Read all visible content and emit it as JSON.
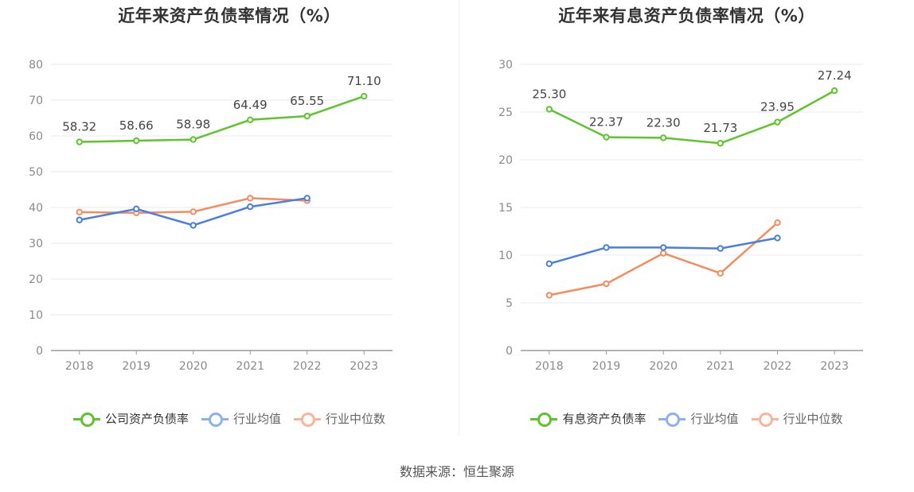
{
  "source_label": "数据来源：恒生聚源",
  "chart_data": [
    {
      "type": "line",
      "title": "近年来资产负债率情况（%）",
      "xlabel": "",
      "ylabel": "",
      "categories": [
        "2018",
        "2019",
        "2020",
        "2021",
        "2022",
        "2023"
      ],
      "ylim": [
        0,
        80
      ],
      "yticks": [
        0,
        10,
        20,
        30,
        40,
        50,
        60,
        70,
        80
      ],
      "grid": true,
      "legend_position": "bottom",
      "series": [
        {
          "name": "公司资产负债率",
          "color": "#5ec42c",
          "values": [
            58.32,
            58.66,
            58.98,
            64.49,
            65.55,
            71.1
          ],
          "labels": [
            "58.32",
            "58.66",
            "58.98",
            "64.49",
            "65.55",
            "71.10"
          ]
        },
        {
          "name": "行业均值",
          "color": "#4a7fe0",
          "values": [
            36.5,
            39.6,
            35.0,
            40.2,
            42.6,
            null
          ],
          "labels": []
        },
        {
          "name": "行业中位数",
          "color": "#f58c5f",
          "values": [
            38.7,
            38.5,
            38.8,
            42.6,
            41.9,
            null
          ],
          "labels": []
        }
      ]
    },
    {
      "type": "line",
      "title": "近年来有息资产负债率情况（%）",
      "xlabel": "",
      "ylabel": "",
      "categories": [
        "2018",
        "2019",
        "2020",
        "2021",
        "2022",
        "2023"
      ],
      "ylim": [
        0,
        30
      ],
      "yticks": [
        0,
        5,
        10,
        15,
        20,
        25,
        30
      ],
      "grid": true,
      "legend_position": "bottom",
      "series": [
        {
          "name": "有息资产负债率",
          "color": "#5ec42c",
          "values": [
            25.3,
            22.37,
            22.3,
            21.73,
            23.95,
            27.24
          ],
          "labels": [
            "25.30",
            "22.37",
            "22.30",
            "21.73",
            "23.95",
            "27.24"
          ]
        },
        {
          "name": "行业均值",
          "color": "#4a7fe0",
          "values": [
            9.1,
            10.8,
            10.8,
            10.7,
            11.8,
            null
          ],
          "labels": []
        },
        {
          "name": "行业中位数",
          "color": "#f58c5f",
          "values": [
            5.8,
            7.0,
            10.2,
            8.1,
            13.4,
            null
          ],
          "labels": []
        }
      ]
    }
  ]
}
